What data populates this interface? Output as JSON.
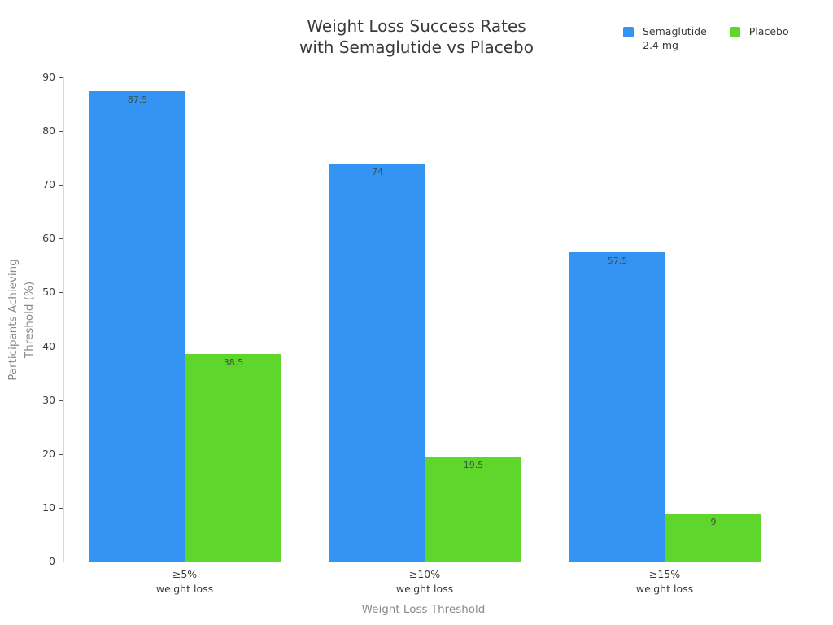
{
  "chart_data": {
    "type": "bar",
    "title": "Weight Loss Success Rates\nwith Semaglutide vs Placebo",
    "xlabel": "Weight Loss Threshold",
    "ylabel": "Participants Achieving\nThreshold (%)",
    "categories": [
      "≥5%\nweight loss",
      "≥10%\nweight loss",
      "≥15%\nweight loss"
    ],
    "series": [
      {
        "name": "Semaglutide\n2.4 mg",
        "color": "#3394F3",
        "values": [
          87.5,
          74,
          57.5
        ]
      },
      {
        "name": "Placebo",
        "color": "#5ED62B",
        "values": [
          38.5,
          19.5,
          9
        ]
      }
    ],
    "ylim": [
      0,
      90
    ],
    "yticks": [
      0,
      10,
      20,
      30,
      40,
      50,
      60,
      70,
      80,
      90
    ],
    "grid": false,
    "legend_position": "top-right",
    "bar_labels_inside": true
  },
  "colors": {
    "semaglutide": "#3394F3",
    "placebo": "#5ED62B",
    "title_text": "#3a3a3a",
    "axis_title_text": "#8a8a8a",
    "tick_text": "#3a3a3a",
    "bar_label_text": "#3d4f49",
    "axis_line": "#d9d9d9"
  }
}
